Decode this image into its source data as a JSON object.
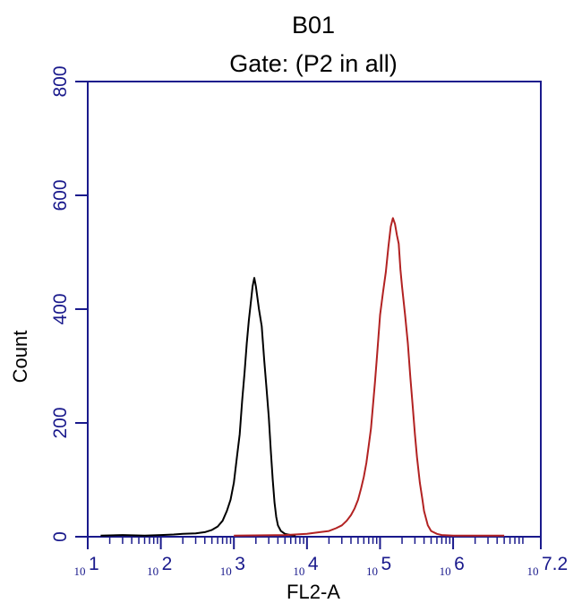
{
  "chart_data": {
    "type": "line",
    "title": "B01",
    "subtitle": "Gate: (P2 in all)",
    "xlabel": "FL2-A",
    "ylabel": "Count",
    "x_scale": "log10",
    "xlim": [
      10,
      15848931.92
    ],
    "ylim": [
      0,
      800
    ],
    "yticks": [
      0,
      200,
      400,
      600,
      800
    ],
    "xticks": [
      {
        "value": 10,
        "base": "10",
        "exp": "1"
      },
      {
        "value": 100,
        "base": "10",
        "exp": "2"
      },
      {
        "value": 1000,
        "base": "10",
        "exp": "3"
      },
      {
        "value": 10000,
        "base": "10",
        "exp": "4"
      },
      {
        "value": 100000,
        "base": "10",
        "exp": "5"
      },
      {
        "value": 1000000,
        "base": "10",
        "exp": "6"
      },
      {
        "value": 15848931.92,
        "base": "10",
        "exp": "7.2"
      }
    ],
    "grid": false,
    "axis_color": "#1a1a8c",
    "series": [
      {
        "color": "#000000",
        "x": [
          15,
          30,
          60,
          100,
          150,
          200,
          300,
          400,
          500,
          600,
          700,
          800,
          900,
          1000,
          1100,
          1200,
          1300,
          1400,
          1500,
          1600,
          1700,
          1800,
          1900,
          2000,
          2100,
          2200,
          2400,
          2600,
          2800,
          3000,
          3200,
          3400,
          3600,
          3800,
          4000,
          4400,
          5000,
          6000,
          7000
        ],
        "y": [
          2,
          3,
          2,
          3,
          4,
          5,
          6,
          8,
          12,
          18,
          28,
          45,
          65,
          95,
          140,
          180,
          240,
          290,
          340,
          380,
          410,
          440,
          455,
          440,
          420,
          400,
          370,
          310,
          260,
          210,
          150,
          100,
          60,
          35,
          20,
          10,
          5,
          3,
          2
        ]
      },
      {
        "color": "#b22222",
        "x": [
          1000,
          5000,
          10000,
          15000,
          20000,
          25000,
          30000,
          35000,
          40000,
          45000,
          50000,
          55000,
          60000,
          65000,
          70000,
          75000,
          80000,
          85000,
          90000,
          95000,
          100000,
          110000,
          120000,
          130000,
          140000,
          150000,
          160000,
          170000,
          180000,
          190000,
          200000,
          220000,
          240000,
          260000,
          280000,
          300000,
          320000,
          350000,
          380000,
          400000,
          450000,
          500000,
          600000,
          700000,
          1000000,
          2000000,
          5000000
        ],
        "y": [
          2,
          3,
          5,
          8,
          10,
          15,
          20,
          28,
          38,
          50,
          65,
          85,
          105,
          130,
          160,
          190,
          230,
          270,
          310,
          350,
          390,
          430,
          465,
          510,
          545,
          560,
          550,
          530,
          515,
          470,
          440,
          390,
          340,
          280,
          230,
          180,
          140,
          95,
          65,
          45,
          20,
          10,
          5,
          3,
          2,
          2,
          2
        ]
      }
    ]
  }
}
